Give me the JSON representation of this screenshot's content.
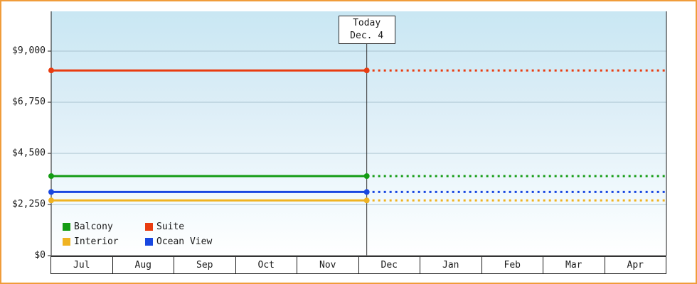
{
  "chart_data": {
    "type": "line",
    "title": "",
    "x_categories": [
      "Jul",
      "Aug",
      "Sep",
      "Oct",
      "Nov",
      "Dec",
      "Jan",
      "Feb",
      "Mar",
      "Apr"
    ],
    "y_ticks": [
      {
        "label": "$9,000",
        "value": 9000
      },
      {
        "label": "$6,750",
        "value": 6750
      },
      {
        "label": "$4,500",
        "value": 4500
      },
      {
        "label": "$2,250",
        "value": 2250
      },
      {
        "label": "$0",
        "value": 0
      }
    ],
    "ylim": [
      0,
      10750
    ],
    "series": [
      {
        "name": "Balcony",
        "color": "#149c14",
        "value": 3500
      },
      {
        "name": "Suite",
        "color": "#e93c10",
        "value": 8150
      },
      {
        "name": "Interior",
        "color": "#efb322",
        "value": 2430
      },
      {
        "name": "Ocean View",
        "color": "#1847e0",
        "value": 2800
      }
    ],
    "today": {
      "label": "Today",
      "date": "Dec. 4",
      "month_index": 5,
      "day": 4,
      "days_in_month": 31
    },
    "legend_position": "bottom-left",
    "legend_columns": 2,
    "grid": true,
    "line_style": "solid up to today marker, dotted projection after today, dot markers at series start and at today"
  },
  "colors": {
    "frame_border": "#f09c3a",
    "plot_bg_top": "#c9e7f3",
    "plot_bg_bottom": "#ffffff",
    "axis": "#1a1a1a",
    "grid": "#a9c2cf",
    "today_line": "#333333"
  }
}
